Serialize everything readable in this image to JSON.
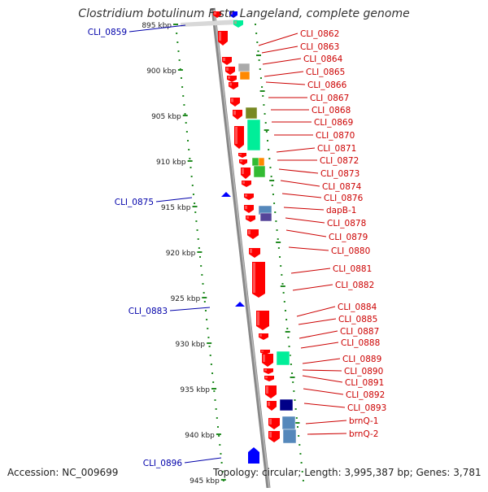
{
  "title": "Clostridium botulinum F str. Langeland, complete genome",
  "accession": "Accession: NC_009699",
  "topology": "Topology: circular; Length: 3,995,387 bp; Genes: 3,781",
  "colors": {
    "right_label": "#cc0000",
    "left_label": "#0000aa",
    "backbone": "#888888",
    "tick": "#228b22",
    "cds": "#ff0000",
    "cds_left": "#0000ff"
  },
  "scale_labels": [
    "895 kbp",
    "900 kbp",
    "905 kbp",
    "910 kbp",
    "915 kbp",
    "920 kbp",
    "925 kbp",
    "930 kbp",
    "935 kbp",
    "940 kbp",
    "945 kbp"
  ],
  "left_labels": [
    "CLI_0859",
    "CLI_0875",
    "CLI_0883",
    "CLI_0896"
  ],
  "right_labels": [
    "CLI_0862",
    "CLI_0863",
    "CLI_0864",
    "CLI_0865",
    "CLI_0866",
    "CLI_0867",
    "CLI_0868",
    "CLI_0869",
    "CLI_0870",
    "CLI_0871",
    "CLI_0872",
    "CLI_0873",
    "CLI_0874",
    "CLI_0876",
    "dapB-1",
    "CLI_0878",
    "CLI_0879",
    "CLI_0880",
    "CLI_0881",
    "CLI_0882",
    "CLI_0884",
    "CLI_0885",
    "CLI_0887",
    "CLI_0888",
    "CLI_0889",
    "CLI_0890",
    "CLI_0891",
    "CLI_0892",
    "CLI_0893",
    "brnQ-1",
    "brnQ-2"
  ]
}
